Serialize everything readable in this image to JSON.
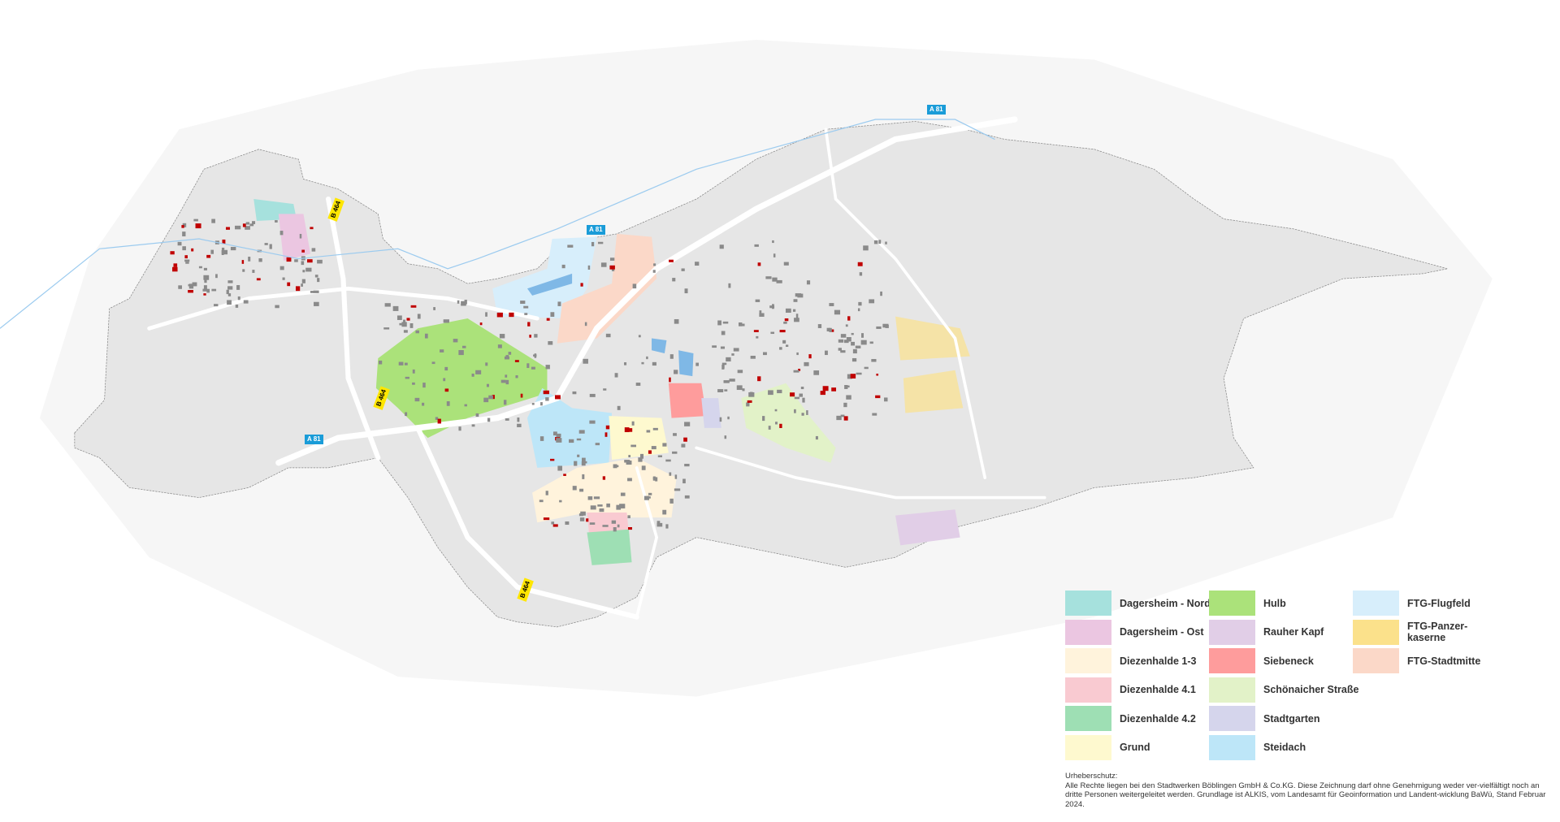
{
  "map": {
    "colors": {
      "background": "#ffffff",
      "outside": "#f6f6f6",
      "city": "#e6e6e6",
      "road": "#ffffff",
      "building": "#8a8a8a",
      "highlight_building": "#c00000",
      "water": "#7fb8e6"
    },
    "road_signs": [
      {
        "label": "A 81",
        "type": "autobahn"
      },
      {
        "label": "A 81",
        "type": "autobahn"
      },
      {
        "label": "A 81",
        "type": "autobahn"
      },
      {
        "label": "B 464",
        "type": "bundesstrasse"
      },
      {
        "label": "B 464",
        "type": "bundesstrasse"
      },
      {
        "label": "B 464",
        "type": "bundesstrasse"
      }
    ]
  },
  "legend": {
    "items": [
      {
        "label": "Dagersheim - Nord",
        "color": "#a6e1dd"
      },
      {
        "label": "Dagersheim - Ost",
        "color": "#ebc6e1"
      },
      {
        "label": "Diezenhalde 1-3",
        "color": "#fff3dc"
      },
      {
        "label": "Diezenhalde 4.1",
        "color": "#f9cad1"
      },
      {
        "label": "Diezenhalde 4.2",
        "color": "#9edfb4"
      },
      {
        "label": "Grund",
        "color": "#fef9cf"
      },
      {
        "label": "Hulb",
        "color": "#abe27a"
      },
      {
        "label": "Rauher Kapf",
        "color": "#e1cee7"
      },
      {
        "label": "Siebeneck",
        "color": "#fe9c9c"
      },
      {
        "label": "Schönaicher Straße",
        "color": "#e2f2c8"
      },
      {
        "label": "Stadtgarten",
        "color": "#d5d5ec"
      },
      {
        "label": "Steidach",
        "color": "#bde6f8"
      },
      {
        "label": "FTG-Flugfeld",
        "color": "#d7eefb"
      },
      {
        "label": "FTG-Panzer-\nkaserne",
        "color": "#fbe18b"
      },
      {
        "label": "FTG-Stadtmitte",
        "color": "#fbd8c8"
      }
    ]
  },
  "copyright": {
    "title": "Urheberschutz:",
    "text": "Alle Rechte liegen bei den Stadtwerken Böblingen GmbH & Co.KG. Diese Zeichnung darf ohne Genehmigung weder ver-vielfältigt noch an dritte Personen weitergeleitet werden. Grundlage ist ALKIS, vom Landesamt für Geoinformation und Landent-wicklung BaWü, Stand Februar 2024."
  }
}
